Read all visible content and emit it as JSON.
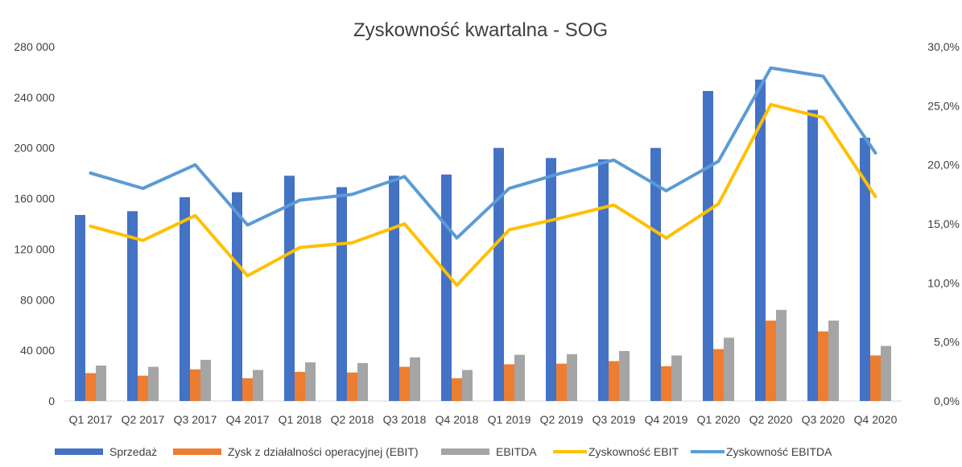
{
  "chart_data": {
    "type": "bar",
    "title": "Zyskowność kwartalna - SOG",
    "xlabel": "",
    "ylabel": "",
    "categories": [
      "Q1 2017",
      "Q2 2017",
      "Q3 2017",
      "Q4 2017",
      "Q1 2018",
      "Q2 2018",
      "Q3 2018",
      "Q4 2018",
      "Q1 2019",
      "Q2 2019",
      "Q3 2019",
      "Q4 2019",
      "Q1 2020",
      "Q2 2020",
      "Q3 2020",
      "Q4 2020"
    ],
    "ylim": [
      0,
      280000
    ],
    "y_ticks": [
      "0",
      "40 000",
      "80 000",
      "120 000",
      "160 000",
      "200 000",
      "240 000",
      "280 000"
    ],
    "y2lim": [
      0,
      30
    ],
    "y2_ticks": [
      "0,0%",
      "5,0%",
      "10,0%",
      "15,0%",
      "20,0%",
      "25,0%",
      "30,0%"
    ],
    "grid": false,
    "legend_position": "bottom",
    "series": [
      {
        "name": "Sprzedaż",
        "kind": "bar",
        "axis": "left",
        "color": "#4472C4",
        "values": [
          147000,
          150000,
          161000,
          165000,
          178000,
          169000,
          178000,
          179000,
          200000,
          192000,
          191000,
          200000,
          245000,
          254000,
          230000,
          208000
        ]
      },
      {
        "name": "Zysk z działalności operacyjnej (EBIT)",
        "kind": "bar",
        "axis": "left",
        "color": "#ED7D31",
        "values": [
          22000,
          20000,
          25000,
          18000,
          23000,
          22500,
          27000,
          18000,
          29000,
          29500,
          31500,
          27500,
          41000,
          63500,
          55000,
          36000
        ]
      },
      {
        "name": "EBITDA",
        "kind": "bar",
        "axis": "left",
        "color": "#A5A5A5",
        "values": [
          28000,
          27000,
          32500,
          24500,
          30500,
          30000,
          34500,
          24500,
          36500,
          37000,
          39500,
          36000,
          50000,
          72000,
          63500,
          43500
        ]
      },
      {
        "name": "Zyskowność EBIT",
        "kind": "line",
        "axis": "right",
        "color": "#FFC000",
        "values": [
          14.8,
          13.6,
          15.7,
          10.6,
          13.0,
          13.4,
          15.0,
          9.8,
          14.5,
          15.5,
          16.6,
          13.8,
          16.7,
          25.1,
          24.0,
          17.3
        ]
      },
      {
        "name": "Zyskowność EBITDA",
        "kind": "line",
        "axis": "right",
        "color": "#5B9BD5",
        "values": [
          19.3,
          18.0,
          20.0,
          14.9,
          17.0,
          17.5,
          19.0,
          13.8,
          18.0,
          19.3,
          20.4,
          17.8,
          20.3,
          28.2,
          27.5,
          21.0
        ]
      }
    ]
  }
}
